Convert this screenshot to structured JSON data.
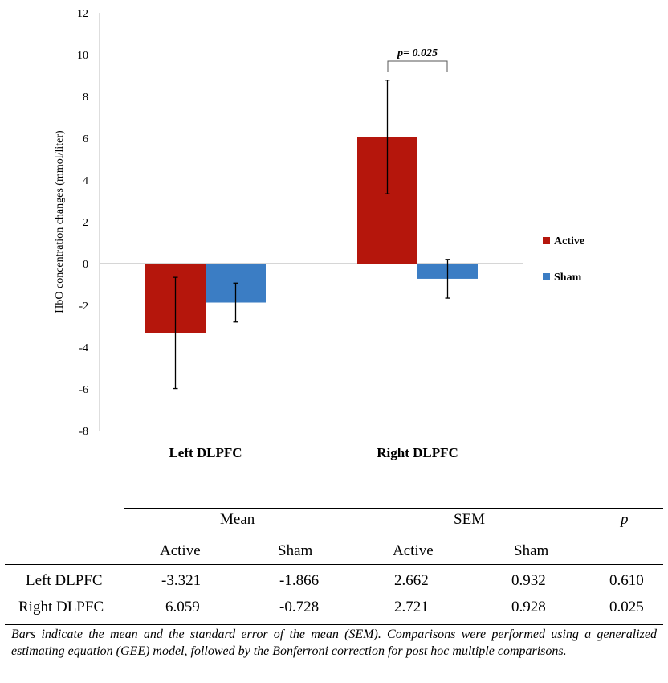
{
  "chart_data": {
    "type": "bar",
    "categories": [
      "Left DLPFC",
      "Right DLPFC"
    ],
    "series": [
      {
        "name": "Active",
        "values": [
          -3.321,
          6.059
        ],
        "sem": [
          2.662,
          2.721
        ],
        "color": "#b5160c"
      },
      {
        "name": "Sham",
        "values": [
          -1.866,
          -0.728
        ],
        "sem": [
          0.932,
          0.928
        ],
        "color": "#3b7dc4"
      }
    ],
    "ylabel": "HbO concentration changes (mmol/liter)",
    "xlabel": "",
    "ylim": [
      -8,
      12
    ],
    "yticks": [
      12,
      10,
      8,
      6,
      4,
      2,
      0,
      -2,
      -4,
      -6,
      -8
    ],
    "legend_position": "right",
    "annotation": {
      "text": "p= 0.025",
      "category": "Right DLPFC"
    }
  },
  "table": {
    "group_headers": [
      "Mean",
      "SEM",
      "p"
    ],
    "sub_headers": [
      "Active",
      "Sham",
      "Active",
      "Sham"
    ],
    "rows": [
      {
        "label": "Left DLPFC",
        "cells": [
          "-3.321",
          "-1.866",
          "2.662",
          "0.932",
          "0.610"
        ]
      },
      {
        "label": "Right DLPFC",
        "cells": [
          "6.059",
          "-0.728",
          "2.721",
          "0.928",
          "0.025"
        ]
      }
    ]
  },
  "footnote": "Bars indicate the mean and the standard error of the mean (SEM). Comparisons were performed using a generalized estimating equation (GEE) model, followed by the Bonferroni correction for post hoc multiple comparisons."
}
